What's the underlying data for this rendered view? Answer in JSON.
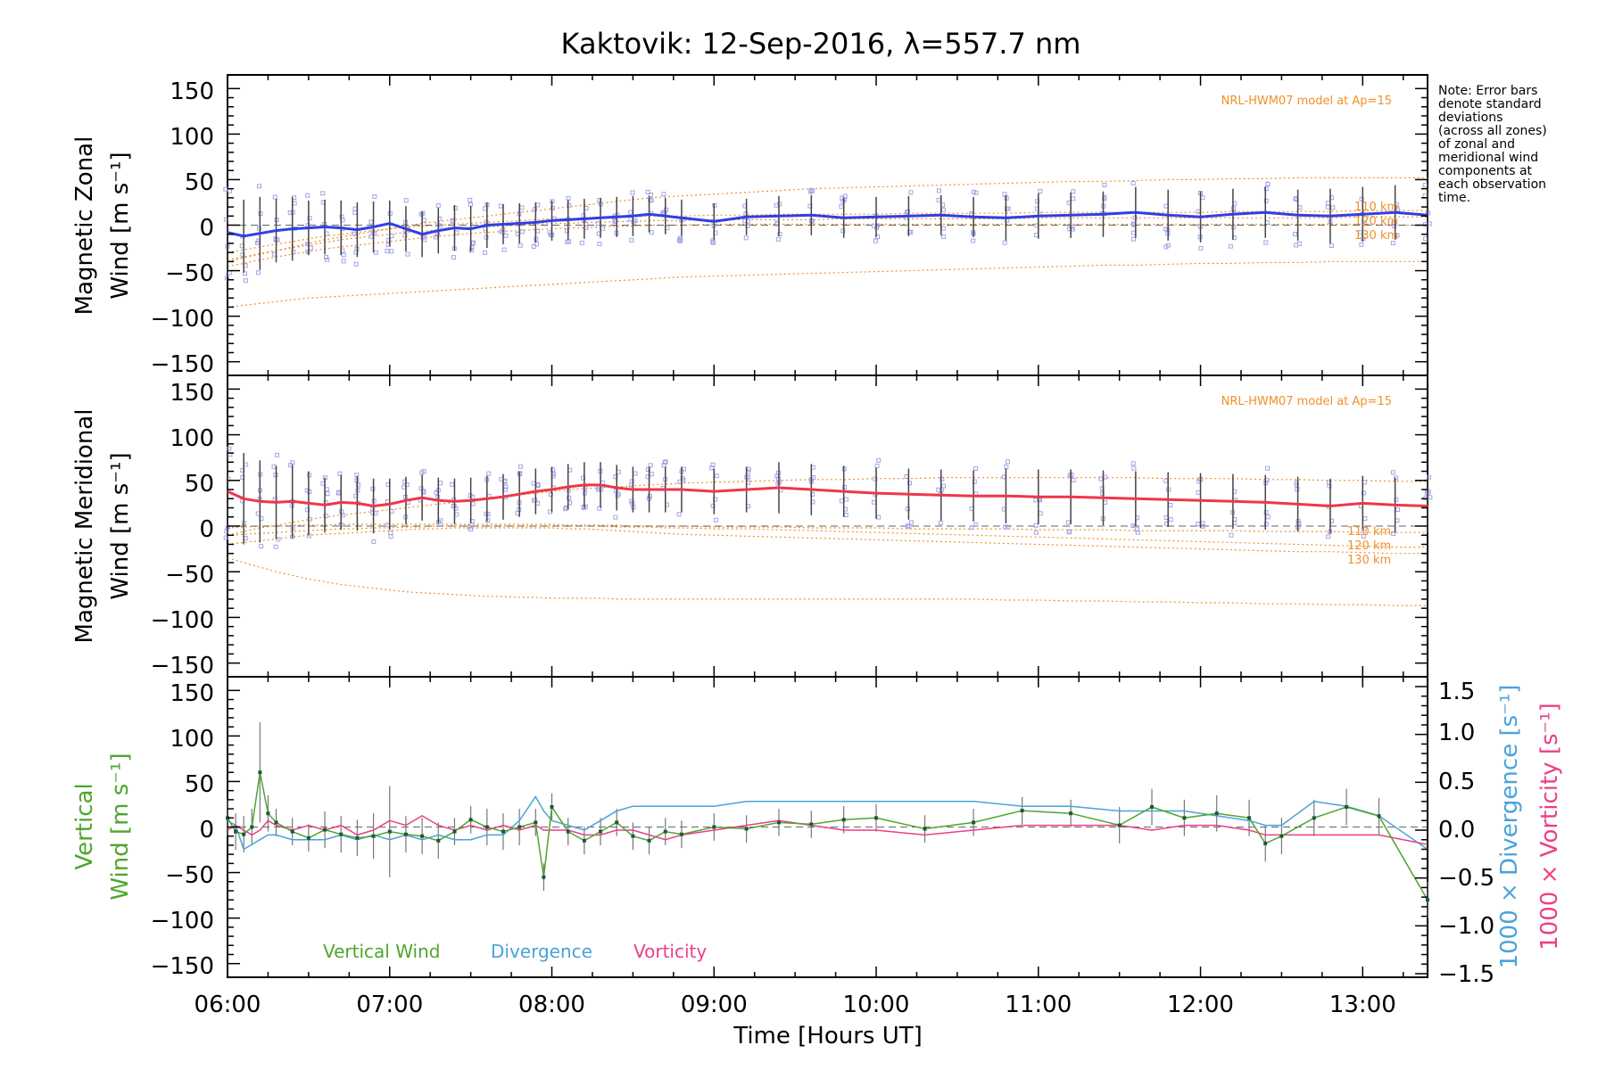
{
  "title": "Kaktovik: 12-Sep-2016, λ=557.7 nm",
  "note_lines": [
    "Note: Error bars",
    "denote standard",
    "deviations",
    "(across all zones)",
    "of zonal and",
    "meridional wind",
    "components at",
    "each observation",
    "time."
  ],
  "colors": {
    "zonal": "#2f3fe6",
    "meridional": "#f0364a",
    "model": "#f0902a",
    "scatter": "#a4a4e8",
    "vertical": "#4fa52e",
    "divergence": "#4aa3d8",
    "vorticity": "#ec3f86",
    "errorbar": "#444444",
    "zero": "#666666"
  },
  "panels": {
    "zonal": {
      "ylabel": [
        "Magnetic Zonal",
        "Wind [m s⁻¹]"
      ],
      "model_label": "NRL-HWM07 model at Ap=15",
      "model_alt_labels": [
        "110 km",
        "120 km",
        "130 km"
      ]
    },
    "meridional": {
      "ylabel": [
        "Magnetic Meridional",
        "Wind [m s⁻¹]"
      ],
      "model_label": "NRL-HWM07 model at Ap=15",
      "model_alt_labels": [
        "110 km",
        "120 km",
        "130 km"
      ]
    },
    "vertical": {
      "ylabel_left": [
        "Vertical",
        "Wind [m s⁻¹]"
      ],
      "ylabel_right_div": "1000 × Divergence [s⁻¹]",
      "ylabel_right_vort": "1000 × Vorticity [s⁻¹]",
      "legend": [
        "Vertical Wind",
        "Divergence",
        "Vorticity"
      ]
    }
  },
  "xaxis": {
    "label": "Time [Hours UT]",
    "ticks": [
      "06:00",
      "07:00",
      "08:00",
      "09:00",
      "10:00",
      "11:00",
      "12:00",
      "13:00"
    ]
  },
  "yaxis": {
    "ticks": [
      "150",
      "100",
      "50",
      "0",
      "−50",
      "−100",
      "−150"
    ]
  },
  "yaxis_right": {
    "ticks": [
      "1.5",
      "1.0",
      "0.5",
      "0.0",
      "−0.5",
      "−1.0",
      "−1.5"
    ]
  },
  "chart_data": {
    "type": "line",
    "x_unit": "hours UT",
    "xlim": [
      6.0,
      13.4
    ],
    "ylim": [
      -165,
      165
    ],
    "ylim_right": [
      -1.5,
      1.5
    ],
    "zonal": {
      "times": [
        6.0,
        6.1,
        6.2,
        6.3,
        6.4,
        6.5,
        6.6,
        6.7,
        6.8,
        6.9,
        7.0,
        7.1,
        7.2,
        7.3,
        7.4,
        7.5,
        7.6,
        7.7,
        7.8,
        7.9,
        8.0,
        8.1,
        8.2,
        8.3,
        8.4,
        8.5,
        8.6,
        8.7,
        8.8,
        9.0,
        9.2,
        9.4,
        9.6,
        9.8,
        10.0,
        10.2,
        10.4,
        10.6,
        10.8,
        11.0,
        11.2,
        11.4,
        11.6,
        11.8,
        12.0,
        12.2,
        12.4,
        12.6,
        12.8,
        13.0,
        13.2,
        13.4
      ],
      "wind": [
        -8,
        -12,
        -9,
        -6,
        -4,
        -3,
        -2,
        -3,
        -5,
        -2,
        2,
        -4,
        -10,
        -6,
        -3,
        -4,
        0,
        1,
        2,
        3,
        5,
        6,
        7,
        8,
        9,
        10,
        12,
        10,
        8,
        4,
        9,
        10,
        11,
        8,
        9,
        10,
        11,
        9,
        8,
        10,
        11,
        12,
        14,
        11,
        9,
        12,
        14,
        11,
        10,
        12,
        14,
        11
      ],
      "error": [
        45,
        40,
        40,
        35,
        35,
        30,
        30,
        30,
        30,
        28,
        25,
        25,
        25,
        25,
        25,
        25,
        25,
        22,
        22,
        22,
        22,
        22,
        22,
        22,
        22,
        22,
        20,
        20,
        20,
        20,
        20,
        22,
        22,
        22,
        22,
        22,
        22,
        22,
        25,
        25,
        25,
        25,
        28,
        28,
        28,
        28,
        28,
        28,
        30,
        30,
        30,
        30
      ],
      "model_110": [
        -30,
        -27,
        -24,
        -21,
        -18,
        -15,
        -12,
        -10,
        -8,
        -6,
        -4,
        -2,
        -1,
        0,
        1,
        2,
        3,
        4,
        5,
        6,
        7,
        7,
        8,
        8,
        9,
        9,
        10,
        10,
        10,
        11,
        11,
        12,
        12,
        12,
        12,
        13,
        13,
        13,
        13,
        14,
        14,
        14,
        14,
        14,
        14,
        15,
        15,
        15,
        15,
        16,
        16,
        16
      ],
      "model_120": [
        -38,
        -35,
        -31,
        -28,
        -25,
        -22,
        -19,
        -16,
        -14,
        -12,
        -10,
        -8,
        -7,
        -5,
        -4,
        -3,
        -2,
        -1,
        0,
        1,
        2,
        2,
        3,
        3,
        4,
        4,
        5,
        5,
        5,
        6,
        6,
        6,
        6,
        7,
        7,
        7,
        7,
        7,
        7,
        8,
        8,
        8,
        8,
        8,
        8,
        8,
        8,
        8,
        8,
        9,
        9,
        9
      ],
      "model_130": [
        -45,
        -42,
        -38,
        -35,
        -32,
        -29,
        -26,
        -24,
        -22,
        -20,
        -18,
        -16,
        -14,
        -12,
        -11,
        -9,
        -8,
        -7,
        -6,
        -5,
        -4,
        -3,
        -3,
        -2,
        -1,
        -1,
        0,
        0,
        0,
        1,
        1,
        1,
        1,
        1,
        1,
        1,
        1,
        1,
        1,
        1,
        1,
        1,
        1,
        1,
        1,
        1,
        1,
        1,
        1,
        1,
        0,
        0
      ],
      "model_upper": [
        -40,
        -36,
        -32,
        -28,
        -24,
        -20,
        -16,
        -13,
        -10,
        -7,
        -4,
        -1,
        2,
        4,
        6,
        8,
        10,
        12,
        14,
        16,
        18,
        20,
        22,
        24,
        26,
        28,
        30,
        31,
        32,
        34,
        36,
        38,
        40,
        41,
        42,
        43,
        44,
        45,
        46,
        47,
        48,
        48,
        49,
        50,
        50,
        51,
        51,
        52,
        52,
        52,
        52,
        52
      ],
      "model_lower": [
        -90,
        -88,
        -86,
        -84,
        -82,
        -80,
        -79,
        -78,
        -77,
        -76,
        -75,
        -74,
        -73,
        -72,
        -71,
        -70,
        -69,
        -68,
        -67,
        -66,
        -65,
        -64,
        -63,
        -62,
        -61,
        -60,
        -59,
        -58,
        -57,
        -56,
        -55,
        -54,
        -53,
        -52,
        -51,
        -50,
        -49,
        -48,
        -47,
        -46,
        -45,
        -44,
        -44,
        -43,
        -42,
        -42,
        -41,
        -41,
        -40,
        -40,
        -40,
        -40
      ]
    },
    "meridional": {
      "times": [
        6.0,
        6.1,
        6.2,
        6.3,
        6.4,
        6.5,
        6.6,
        6.7,
        6.8,
        6.9,
        7.0,
        7.1,
        7.2,
        7.3,
        7.4,
        7.5,
        7.6,
        7.7,
        7.8,
        7.9,
        8.0,
        8.1,
        8.2,
        8.3,
        8.4,
        8.5,
        8.6,
        8.7,
        8.8,
        9.0,
        9.2,
        9.4,
        9.6,
        9.8,
        10.0,
        10.2,
        10.4,
        10.6,
        10.8,
        11.0,
        11.2,
        11.4,
        11.6,
        11.8,
        12.0,
        12.2,
        12.4,
        12.6,
        12.8,
        13.0,
        13.2,
        13.4
      ],
      "wind": [
        38,
        30,
        27,
        26,
        27,
        25,
        23,
        26,
        25,
        22,
        24,
        28,
        31,
        28,
        27,
        28,
        30,
        32,
        35,
        38,
        40,
        43,
        45,
        45,
        42,
        40,
        40,
        40,
        40,
        38,
        40,
        42,
        40,
        38,
        36,
        35,
        34,
        33,
        33,
        32,
        32,
        31,
        30,
        29,
        28,
        27,
        26,
        24,
        22,
        25,
        23,
        22
      ],
      "error": [
        45,
        50,
        45,
        40,
        40,
        35,
        30,
        30,
        30,
        30,
        28,
        26,
        25,
        25,
        25,
        25,
        25,
        25,
        25,
        25,
        25,
        25,
        25,
        25,
        25,
        25,
        25,
        25,
        25,
        25,
        25,
        28,
        28,
        28,
        28,
        28,
        28,
        28,
        30,
        30,
        30,
        30,
        30,
        30,
        30,
        30,
        30,
        30,
        30,
        30,
        30,
        30
      ],
      "model_110": [
        -2,
        -1,
        0,
        0,
        1,
        1,
        1,
        2,
        2,
        2,
        2,
        2,
        2,
        2,
        2,
        2,
        2,
        2,
        2,
        2,
        2,
        1,
        1,
        1,
        1,
        0,
        0,
        0,
        0,
        -1,
        -1,
        -1,
        -2,
        -2,
        -2,
        -3,
        -3,
        -3,
        -3,
        -4,
        -4,
        -4,
        -5,
        -5,
        -5,
        -5,
        -6,
        -6,
        -6,
        -7,
        -7,
        -7
      ],
      "model_120": [
        -10,
        -9,
        -8,
        -7,
        -6,
        -5,
        -4,
        -3,
        -3,
        -2,
        -2,
        -1,
        -1,
        0,
        0,
        0,
        0,
        0,
        0,
        0,
        0,
        0,
        0,
        0,
        -1,
        -1,
        -1,
        -2,
        -2,
        -3,
        -3,
        -4,
        -5,
        -6,
        -7,
        -8,
        -9,
        -10,
        -11,
        -12,
        -13,
        -14,
        -15,
        -16,
        -17,
        -18,
        -19,
        -20,
        -21,
        -22,
        -23,
        -23
      ],
      "model_130": [
        -20,
        -18,
        -16,
        -14,
        -12,
        -10,
        -9,
        -8,
        -7,
        -6,
        -5,
        -4,
        -3,
        -3,
        -2,
        -2,
        -2,
        -2,
        -2,
        -2,
        -2,
        -3,
        -3,
        -4,
        -5,
        -6,
        -7,
        -8,
        -9,
        -10,
        -11,
        -12,
        -13,
        -14,
        -15,
        -16,
        -17,
        -18,
        -19,
        -20,
        -21,
        -22,
        -23,
        -24,
        -25,
        -26,
        -27,
        -28,
        -28,
        -29,
        -30,
        -30
      ],
      "model_upper": [
        -10,
        -6,
        -2,
        1,
        4,
        7,
        10,
        12,
        14,
        16,
        18,
        20,
        22,
        24,
        26,
        28,
        30,
        32,
        34,
        36,
        38,
        40,
        41,
        42,
        43,
        44,
        45,
        46,
        47,
        48,
        49,
        50,
        51,
        51,
        52,
        52,
        53,
        53,
        53,
        53,
        53,
        53,
        53,
        52,
        52,
        52,
        51,
        51,
        50,
        50,
        49,
        49
      ],
      "model_lower": [
        -35,
        -40,
        -45,
        -50,
        -54,
        -58,
        -61,
        -64,
        -66,
        -68,
        -70,
        -72,
        -73,
        -74,
        -75,
        -76,
        -77,
        -77,
        -78,
        -78,
        -79,
        -79,
        -79,
        -79,
        -80,
        -80,
        -80,
        -80,
        -80,
        -80,
        -80,
        -80,
        -80,
        -80,
        -80,
        -80,
        -80,
        -80,
        -81,
        -81,
        -82,
        -82,
        -83,
        -83,
        -84,
        -84,
        -85,
        -85,
        -86,
        -86,
        -87,
        -87
      ]
    },
    "vertical": {
      "times": [
        6.0,
        6.05,
        6.1,
        6.15,
        6.2,
        6.25,
        6.3,
        6.4,
        6.5,
        6.6,
        6.7,
        6.8,
        6.9,
        7.0,
        7.1,
        7.2,
        7.3,
        7.4,
        7.5,
        7.6,
        7.7,
        7.8,
        7.9,
        7.95,
        8.0,
        8.1,
        8.2,
        8.3,
        8.4,
        8.5,
        8.6,
        8.7,
        8.8,
        9.0,
        9.2,
        9.4,
        9.6,
        9.8,
        10.0,
        10.3,
        10.6,
        10.9,
        11.2,
        11.5,
        11.7,
        11.9,
        12.1,
        12.3,
        12.4,
        12.5,
        12.7,
        12.9,
        13.1,
        13.4
      ],
      "wind": [
        10,
        -5,
        -8,
        0,
        60,
        15,
        5,
        -5,
        -12,
        -3,
        -8,
        -12,
        -10,
        -5,
        -8,
        -10,
        -15,
        -5,
        8,
        0,
        -5,
        0,
        5,
        -55,
        22,
        -5,
        -15,
        -5,
        5,
        -10,
        -15,
        -5,
        -8,
        0,
        -2,
        5,
        3,
        8,
        10,
        -2,
        5,
        18,
        15,
        2,
        22,
        10,
        15,
        10,
        -18,
        -10,
        10,
        22,
        12,
        -80
      ],
      "error": [
        20,
        20,
        20,
        20,
        55,
        20,
        15,
        15,
        15,
        20,
        20,
        20,
        25,
        50,
        20,
        20,
        20,
        15,
        15,
        20,
        20,
        20,
        15,
        15,
        15,
        15,
        15,
        15,
        15,
        15,
        15,
        15,
        15,
        15,
        15,
        15,
        15,
        15,
        15,
        15,
        15,
        15,
        15,
        20,
        20,
        20,
        20,
        20,
        20,
        20,
        20,
        20,
        20,
        20
      ],
      "divergence": [
        0.1,
        0.05,
        -0.2,
        -0.15,
        -0.1,
        -0.05,
        -0.05,
        -0.1,
        -0.1,
        -0.1,
        -0.05,
        -0.1,
        -0.05,
        -0.1,
        -0.05,
        -0.1,
        -0.05,
        -0.1,
        -0.1,
        -0.05,
        -0.05,
        0.1,
        0.35,
        0.2,
        0.1,
        0.05,
        0.0,
        0.1,
        0.2,
        0.25,
        0.25,
        0.25,
        0.25,
        0.25,
        0.3,
        0.3,
        0.3,
        0.3,
        0.3,
        0.3,
        0.3,
        0.25,
        0.25,
        0.2,
        0.2,
        0.2,
        0.15,
        0.1,
        0.05,
        0.05,
        0.3,
        0.25,
        0.15,
        -0.2
      ],
      "vorticity": [
        0.0,
        0.05,
        0.0,
        -0.05,
        0.0,
        0.1,
        0.05,
        0.0,
        0.05,
        0.0,
        0.05,
        -0.05,
        0.0,
        0.1,
        0.05,
        0.15,
        0.05,
        0.0,
        0.05,
        0.0,
        0.05,
        0.0,
        0.05,
        0.0,
        0.0,
        0.0,
        -0.05,
        -0.05,
        0.0,
        0.0,
        -0.05,
        -0.1,
        -0.05,
        0.0,
        0.05,
        0.1,
        0.05,
        0.0,
        0.0,
        -0.05,
        0.0,
        0.05,
        0.05,
        0.05,
        0.0,
        0.05,
        0.05,
        0.0,
        -0.05,
        -0.05,
        -0.05,
        -0.05,
        -0.05,
        -0.15
      ]
    }
  }
}
